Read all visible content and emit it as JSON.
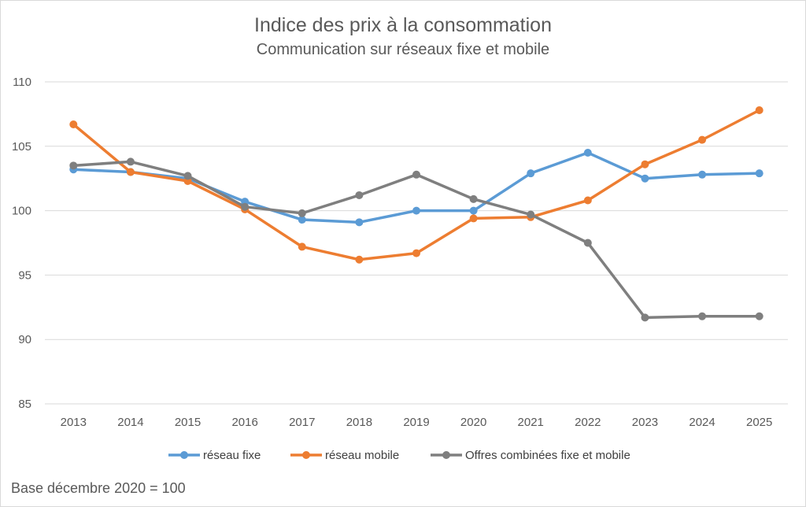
{
  "chart_data": {
    "type": "line",
    "title": "Indice des prix à la consommation",
    "subtitle": "Communication sur réseaux fixe et mobile",
    "note": "Base décembre 2020 = 100",
    "x": [
      "2013",
      "2014",
      "2015",
      "2016",
      "2017",
      "2018",
      "2019",
      "2020",
      "2021",
      "2022",
      "2023",
      "2024",
      "2025"
    ],
    "ylim": [
      85,
      110
    ],
    "yticks": [
      "85",
      "90",
      "95",
      "100",
      "105",
      "110"
    ],
    "grid": true,
    "legend_position": "bottom",
    "series": [
      {
        "name": "réseau fixe",
        "color": "#5b9bd5",
        "values": [
          103.2,
          103.0,
          102.5,
          100.7,
          99.3,
          99.1,
          100.0,
          100.0,
          102.9,
          104.5,
          102.5,
          102.8,
          102.9
        ]
      },
      {
        "name": "réseau mobile",
        "color": "#ed7d31",
        "values": [
          106.7,
          103.0,
          102.3,
          100.1,
          97.2,
          96.2,
          96.7,
          99.4,
          99.5,
          100.8,
          103.6,
          105.5,
          107.8
        ]
      },
      {
        "name": "Offres combinées fixe et mobile",
        "color": "#7f7f7f",
        "values": [
          103.5,
          103.8,
          102.7,
          100.3,
          99.8,
          101.2,
          102.8,
          100.9,
          99.7,
          97.5,
          91.7,
          91.8,
          91.8
        ]
      }
    ]
  }
}
